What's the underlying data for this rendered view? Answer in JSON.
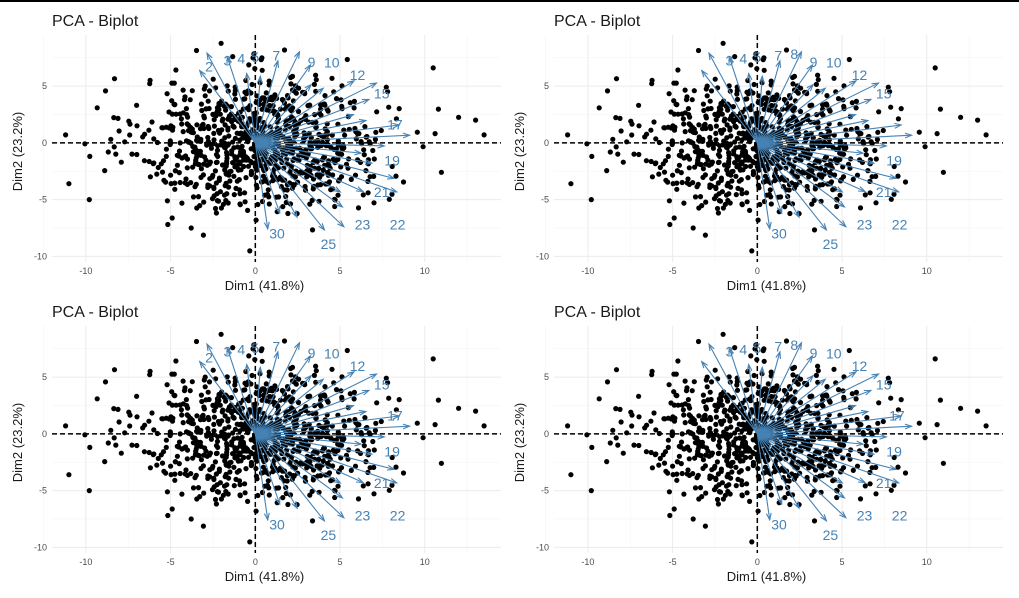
{
  "colors": {
    "points": "#000000",
    "arrows": "#4682b4",
    "grid": "#ebebeb",
    "background": "#ffffff"
  },
  "chart_data": [
    {
      "type": "scatter",
      "title": "PCA - Biplot",
      "xlabel": "Dim1 (41.8%)",
      "ylabel": "Dim2 (23.2%)",
      "xlim": [
        -12,
        14.5
      ],
      "ylim": [
        -10.5,
        9.5
      ],
      "xticks": [
        -10,
        -5,
        0,
        5,
        10
      ],
      "yticks": [
        -10,
        -5,
        0,
        5
      ],
      "xtick_labels": [
        "-10",
        "-5",
        "0",
        "5",
        "10"
      ],
      "ytick_labels": [
        "-10",
        "-5",
        "0",
        "5"
      ],
      "grid": true,
      "variable_labels": [
        "2",
        "3",
        "4",
        "5",
        "7",
        "9",
        "10",
        "12",
        "15",
        "17",
        "19",
        "21",
        "22",
        "23",
        "25",
        "30"
      ]
    },
    {
      "type": "scatter",
      "title": "PCA - Biplot",
      "xlabel": "Dim1 (41.8%)",
      "ylabel": "Dim2 (23.2%)",
      "xlim": [
        -12,
        14.5
      ],
      "ylim": [
        -10.5,
        9.5
      ],
      "xticks": [
        -10,
        -5,
        0,
        5,
        10
      ],
      "yticks": [
        -10,
        -5,
        0,
        5
      ],
      "xtick_labels": [
        "-10",
        "-5",
        "0",
        "5",
        "10"
      ],
      "ytick_labels": [
        "-10",
        "-5",
        "0",
        "5"
      ],
      "grid": true,
      "variable_labels": [
        "3",
        "4",
        "5",
        "7",
        "8",
        "9",
        "10",
        "12",
        "15",
        "19",
        "21",
        "22",
        "23",
        "25",
        "30"
      ]
    },
    {
      "type": "scatter",
      "title": "PCA - Biplot",
      "xlabel": "Dim1 (41.8%)",
      "ylabel": "Dim2 (23.2%)",
      "xlim": [
        -12,
        14.5
      ],
      "ylim": [
        -10.5,
        9.5
      ],
      "xticks": [
        -10,
        -5,
        0,
        5,
        10
      ],
      "yticks": [
        -10,
        -5,
        0,
        5
      ],
      "xtick_labels": [
        "-10",
        "-5",
        "0",
        "5",
        "10"
      ],
      "ytick_labels": [
        "-10",
        "-5",
        "0",
        "5"
      ],
      "grid": true,
      "variable_labels": [
        "2",
        "3",
        "4",
        "5",
        "7",
        "9",
        "10",
        "12",
        "15",
        "17",
        "19",
        "21",
        "22",
        "23",
        "25",
        "30"
      ]
    },
    {
      "type": "scatter",
      "title": "PCA - Biplot",
      "xlabel": "Dim1 (41.8%)",
      "ylabel": "Dim2 (23.2%)",
      "xlim": [
        -12,
        14.5
      ],
      "ylim": [
        -10.5,
        9.5
      ],
      "xticks": [
        -10,
        -5,
        0,
        5,
        10
      ],
      "yticks": [
        -10,
        -5,
        0,
        5
      ],
      "xtick_labels": [
        "-10",
        "-5",
        "0",
        "5",
        "10"
      ],
      "ytick_labels": [
        "-10",
        "-5",
        "0",
        "5"
      ],
      "grid": true,
      "variable_labels": [
        "3",
        "4",
        "5",
        "7",
        "8",
        "9",
        "10",
        "12",
        "15",
        "17",
        "19",
        "21",
        "22",
        "23",
        "25",
        "30"
      ]
    }
  ]
}
